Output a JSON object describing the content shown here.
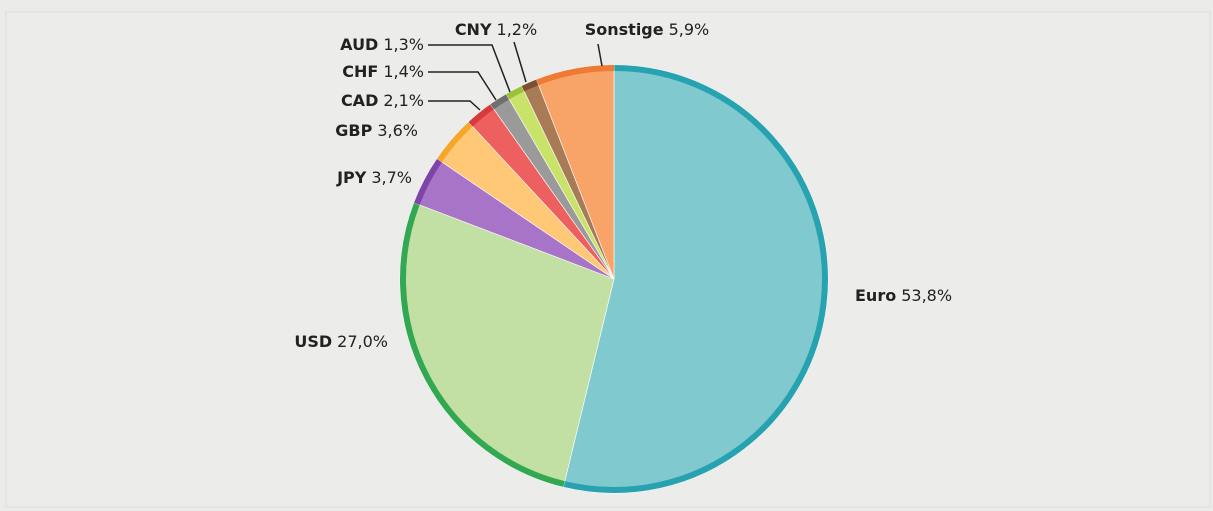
{
  "chart_data": {
    "type": "pie",
    "categories": [
      "Euro",
      "USD",
      "JPY",
      "GBP",
      "CAD",
      "CHF",
      "AUD",
      "CNY",
      "Sonstige"
    ],
    "values": [
      53.8,
      27.0,
      3.7,
      3.6,
      2.1,
      1.4,
      1.3,
      1.2,
      5.9
    ],
    "value_labels": [
      "53,8%",
      "27,0%",
      "3,7%",
      "3,6%",
      "2,1%",
      "1,4%",
      "1,3%",
      "1,2%",
      "5,9%"
    ],
    "colors": [
      "#7fc9cf",
      "#c3e0a4",
      "#a874c8",
      "#ffc877",
      "#ee6060",
      "#9a9a9a",
      "#c9e26a",
      "#a87a55",
      "#f8a468"
    ],
    "border_colors": [
      "#27a2b0",
      "#33a853",
      "#7d45a8",
      "#f5a72a",
      "#d63a3a",
      "#6f6f6f",
      "#9cc23a",
      "#7a5030",
      "#ee7a34"
    ]
  }
}
